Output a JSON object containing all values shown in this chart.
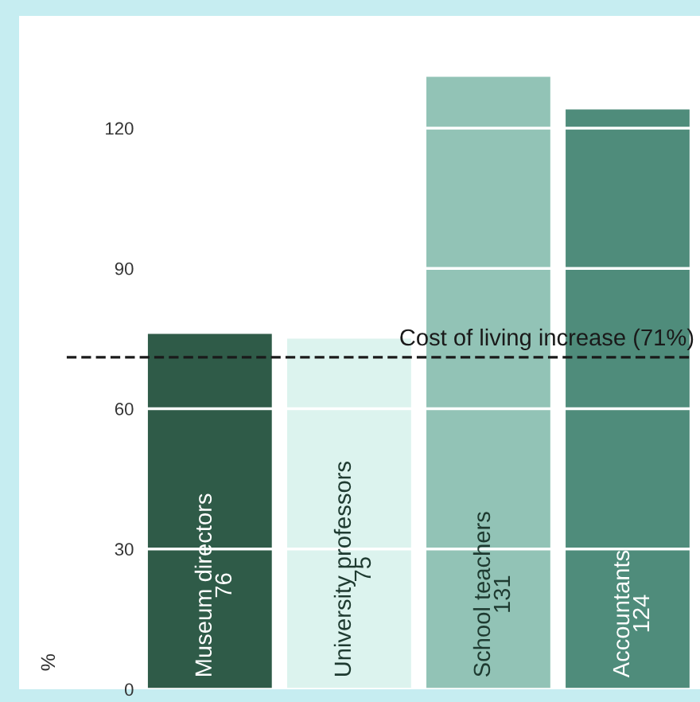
{
  "chart_data": {
    "type": "bar",
    "ylabel": "%",
    "categories": [
      "Museum directors",
      "University professors",
      "School teachers",
      "Accountants"
    ],
    "values": [
      76,
      75,
      131,
      124
    ],
    "colors": [
      "#2f5b48",
      "#dcf3ee",
      "#92c3b6",
      "#4f8c7b"
    ],
    "data_labels": true,
    "ylim": [
      0,
      144
    ],
    "yticks": [
      0,
      30,
      60,
      90,
      120
    ],
    "grid": "y",
    "ref_lines": [
      {
        "axis": "y",
        "value": 71,
        "label": "Cost of living increase (71%)",
        "color": "#1a1a1a",
        "line_style": "dashed"
      }
    ]
  }
}
